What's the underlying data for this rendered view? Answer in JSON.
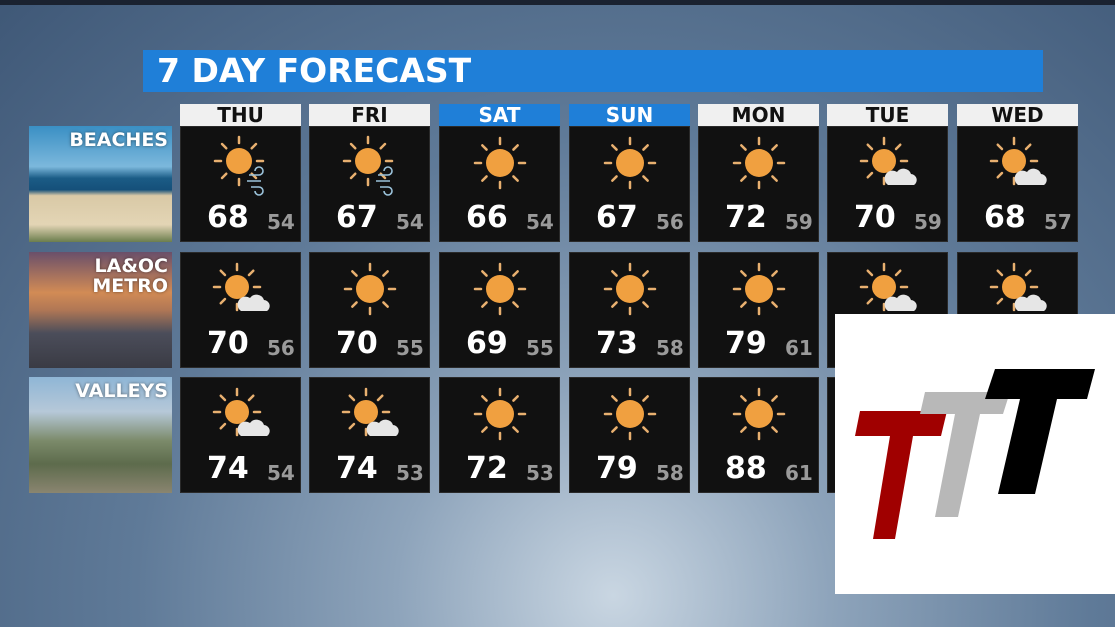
{
  "title": "7 DAY FORECAST",
  "colors": {
    "title_bar": "#1f7fd8",
    "weekend_header": "#1f7fd8",
    "weekday_header": "#f0f0f0",
    "sun": "#f0a040",
    "cell": "#111111"
  },
  "days": [
    {
      "label": "THU",
      "weekend": false
    },
    {
      "label": "FRI",
      "weekend": false
    },
    {
      "label": "SAT",
      "weekend": true
    },
    {
      "label": "SUN",
      "weekend": true
    },
    {
      "label": "MON",
      "weekend": false
    },
    {
      "label": "TUE",
      "weekend": false
    },
    {
      "label": "WED",
      "weekend": false
    }
  ],
  "regions": [
    {
      "label": "BEACHES",
      "cells": [
        {
          "icon": "sun-wind-icon",
          "hi": "68",
          "lo": "54"
        },
        {
          "icon": "sun-wind-icon",
          "hi": "67",
          "lo": "54"
        },
        {
          "icon": "sun-icon",
          "hi": "66",
          "lo": "54"
        },
        {
          "icon": "sun-icon",
          "hi": "67",
          "lo": "56"
        },
        {
          "icon": "sun-icon",
          "hi": "72",
          "lo": "59"
        },
        {
          "icon": "partly-cloudy-icon",
          "hi": "70",
          "lo": "59"
        },
        {
          "icon": "partly-cloudy-icon",
          "hi": "68",
          "lo": "57"
        }
      ]
    },
    {
      "label": "LA&OC\nMETRO",
      "cells": [
        {
          "icon": "partly-cloudy-icon",
          "hi": "70",
          "lo": "56"
        },
        {
          "icon": "sun-icon",
          "hi": "70",
          "lo": "55"
        },
        {
          "icon": "sun-icon",
          "hi": "69",
          "lo": "55"
        },
        {
          "icon": "sun-icon",
          "hi": "73",
          "lo": "58"
        },
        {
          "icon": "sun-icon",
          "hi": "79",
          "lo": "61"
        },
        {
          "icon": "partly-cloudy-icon",
          "hi": "",
          "lo": ""
        },
        {
          "icon": "partly-cloudy-icon",
          "hi": "",
          "lo": ""
        }
      ]
    },
    {
      "label": "VALLEYS",
      "cells": [
        {
          "icon": "partly-cloudy-icon",
          "hi": "74",
          "lo": "54"
        },
        {
          "icon": "partly-cloudy-icon",
          "hi": "74",
          "lo": "53"
        },
        {
          "icon": "sun-icon",
          "hi": "72",
          "lo": "53"
        },
        {
          "icon": "sun-icon",
          "hi": "79",
          "lo": "58"
        },
        {
          "icon": "sun-icon",
          "hi": "88",
          "lo": "61"
        },
        {
          "icon": "",
          "hi": "",
          "lo": ""
        },
        {
          "icon": "",
          "hi": "",
          "lo": ""
        }
      ]
    }
  ],
  "logo": {
    "text": "TTT",
    "colors": [
      "#a00000",
      "#b8b8b8",
      "#000000"
    ]
  }
}
